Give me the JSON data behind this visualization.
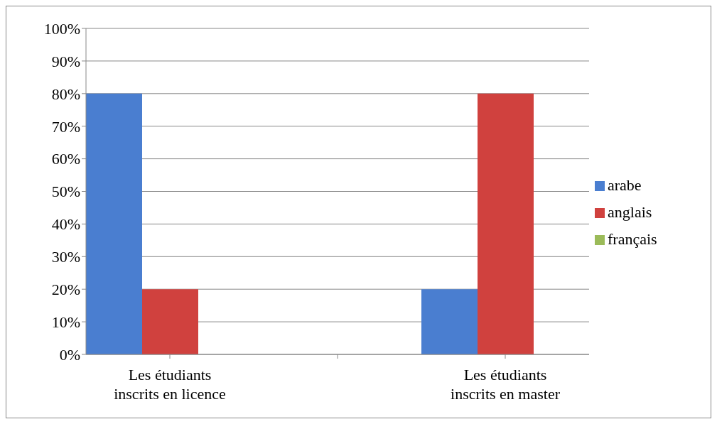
{
  "chart_data": {
    "type": "bar",
    "categories": [
      "Les étudiants inscrits en licence",
      null,
      "Les étudiants inscrits en master"
    ],
    "series": [
      {
        "name": "arabe",
        "color": "#4a7ed0",
        "values": [
          80,
          null,
          20
        ]
      },
      {
        "name": "anglais",
        "color": "#d0413e",
        "values": [
          20,
          null,
          80
        ]
      },
      {
        "name": "français",
        "color": "#9bbb59",
        "values": [
          0,
          null,
          0
        ]
      }
    ],
    "ylim": [
      0,
      100
    ],
    "yticks": [
      {
        "value": 0,
        "label": "0%"
      },
      {
        "value": 10,
        "label": "10%"
      },
      {
        "value": 20,
        "label": "20%"
      },
      {
        "value": 30,
        "label": "30%"
      },
      {
        "value": 40,
        "label": "40%"
      },
      {
        "value": 50,
        "label": "50%"
      },
      {
        "value": 60,
        "label": "60%"
      },
      {
        "value": 70,
        "label": "70%"
      },
      {
        "value": 80,
        "label": "80%"
      },
      {
        "value": 90,
        "label": "90%"
      },
      {
        "value": 100,
        "label": "100%"
      }
    ],
    "grid": "y",
    "legend": "right"
  }
}
